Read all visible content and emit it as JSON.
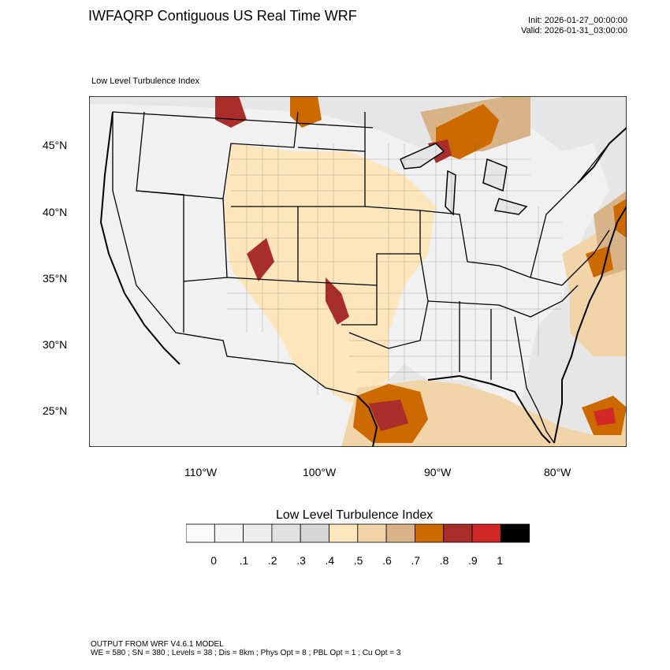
{
  "header": {
    "title": "IWFAQRP Contiguous US Real Time WRF",
    "init": "Init: 2026-01-27_00:00:00",
    "valid": "Valid: 2026-01-31_03:00:00"
  },
  "plot": {
    "subtitle": "Low Level Turbulence Index",
    "lat_ticks": [
      "45°N",
      "40°N",
      "35°N",
      "30°N",
      "25°N"
    ],
    "lon_ticks": [
      "110°W",
      "100°W",
      "90°W",
      "80°W"
    ]
  },
  "colorbar": {
    "title": "Low Level Turbulence Index",
    "colors": [
      "#fbfbfb",
      "#f4f4f4",
      "#ececec",
      "#e1e1e1",
      "#d6d6d6",
      "#fde6bc",
      "#f1d5a9",
      "#d8b388",
      "#cc6a00",
      "#a92d2a",
      "#d02727",
      "#000000"
    ],
    "labels": [
      "0",
      ".1",
      ".2",
      ".3",
      ".4",
      ".5",
      ".6",
      ".7",
      ".8",
      ".9",
      "1"
    ]
  },
  "footer": {
    "line1": "OUTPUT FROM WRF V4.6.1 MODEL",
    "line2": "WE = 580 ; SN = 380 ; Levels = 38 ; Dis = 8km ; Phys Opt = 8 ; PBL Opt = 1 ; Cu Opt = 3"
  }
}
